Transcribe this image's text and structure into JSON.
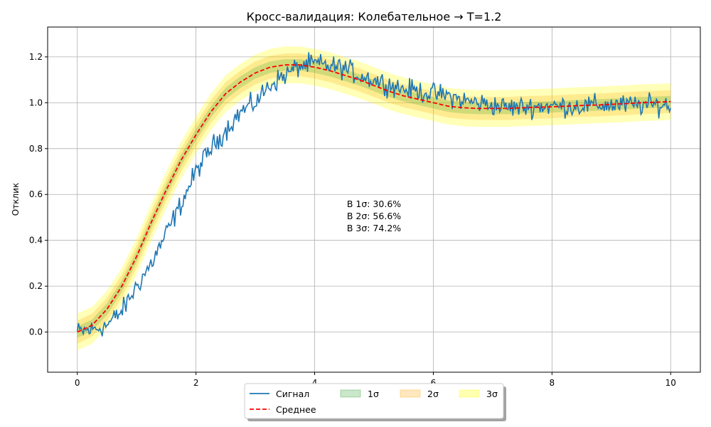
{
  "chart_data": {
    "type": "line",
    "title": "Кросс-валидация: Колебательное → T=1.2",
    "xlabel": "",
    "ylabel": "Отклик",
    "xlim": [
      -0.5,
      10.5
    ],
    "ylim": [
      -0.175,
      1.33
    ],
    "x_ticks": [
      0,
      2,
      4,
      6,
      8,
      10
    ],
    "x_tick_labels": [
      "0",
      "2",
      "4",
      "6",
      "8",
      "10"
    ],
    "y_ticks": [
      0.0,
      0.2,
      0.4,
      0.6,
      0.8,
      1.0,
      1.2
    ],
    "y_tick_labels": [
      "0.0",
      "0.2",
      "0.4",
      "0.6",
      "0.8",
      "1.0",
      "1.2"
    ],
    "grid": true,
    "legend_position": "bottom-center",
    "colors": {
      "signal": "#1f77b4",
      "mean": "#ff0000",
      "band1": "#2ca02c",
      "band2": "#ffa500",
      "band3": "#ffff00"
    },
    "x": [
      0.0,
      0.25,
      0.5,
      0.75,
      1.0,
      1.25,
      1.5,
      1.75,
      2.0,
      2.25,
      2.5,
      2.75,
      3.0,
      3.25,
      3.5,
      3.75,
      4.0,
      4.25,
      4.5,
      4.75,
      5.0,
      5.25,
      5.5,
      5.75,
      6.0,
      6.25,
      6.5,
      6.75,
      7.0,
      7.25,
      7.5,
      7.75,
      8.0,
      8.25,
      8.5,
      8.75,
      9.0,
      9.25,
      9.5,
      9.75,
      10.0
    ],
    "series": [
      {
        "name": "Среднее",
        "style": "dashed",
        "values": [
          0.0,
          0.03,
          0.1,
          0.2,
          0.33,
          0.48,
          0.62,
          0.75,
          0.86,
          0.96,
          1.04,
          1.09,
          1.13,
          1.155,
          1.165,
          1.165,
          1.155,
          1.14,
          1.12,
          1.1,
          1.075,
          1.05,
          1.03,
          1.015,
          1.0,
          0.985,
          0.978,
          0.975,
          0.975,
          0.975,
          0.978,
          0.98,
          0.982,
          0.985,
          0.988,
          0.99,
          0.993,
          0.996,
          1.0,
          1.002,
          1.005
        ]
      },
      {
        "name": "Сигнал",
        "style": "solid",
        "values": [
          0.0,
          0.01,
          0.03,
          0.09,
          0.2,
          0.3,
          0.43,
          0.56,
          0.7,
          0.8,
          0.88,
          0.96,
          1.0,
          1.08,
          1.12,
          1.16,
          1.17,
          1.16,
          1.15,
          1.12,
          1.1,
          1.08,
          1.06,
          1.05,
          1.04,
          1.03,
          1.01,
          1.0,
          0.99,
          0.98,
          0.98,
          0.985,
          0.985,
          0.985,
          0.985,
          0.99,
          0.99,
          0.99,
          0.99,
          0.99,
          0.99
        ]
      }
    ],
    "bands": [
      {
        "name": "1σ",
        "half_width": 0.025
      },
      {
        "name": "2σ",
        "half_width": 0.05
      },
      {
        "name": "3σ",
        "half_width": 0.08
      }
    ],
    "annotation_lines": [
      "В 1σ: 30.6%",
      "В 2σ: 56.6%",
      "В 3σ: 74.2%"
    ],
    "legend_entries": [
      "Сигнал",
      "Среднее",
      "1σ",
      "2σ",
      "3σ"
    ]
  }
}
